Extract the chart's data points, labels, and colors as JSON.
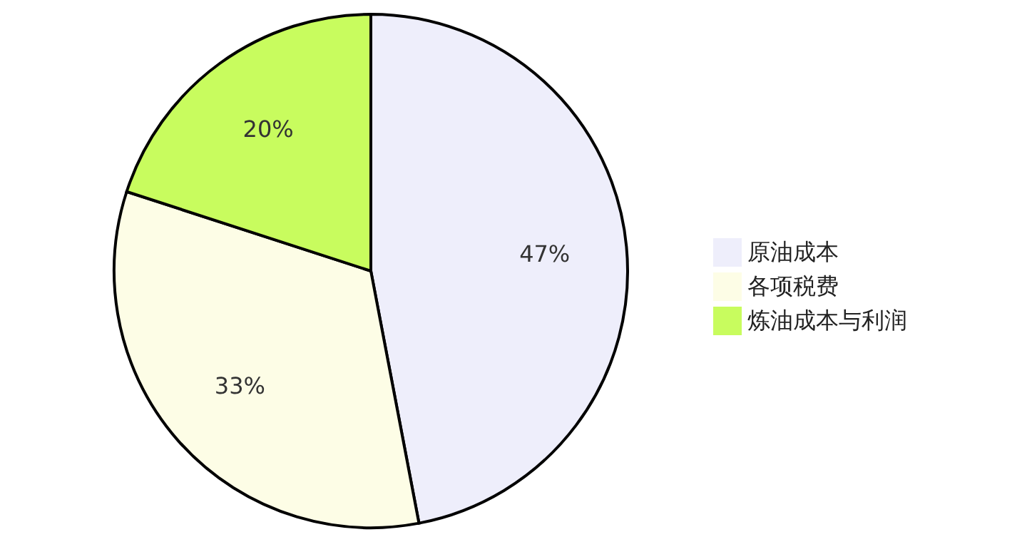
{
  "chart_data": {
    "type": "pie",
    "categories": [
      "原油成本",
      "各项税费",
      "炼油成本与利润"
    ],
    "values": [
      47,
      33,
      20
    ],
    "colors": [
      "#eeeefb",
      "#fdfde6",
      "#c8fc5e"
    ],
    "value_labels": [
      "47%",
      "33%",
      "20%"
    ],
    "legend": "right"
  }
}
